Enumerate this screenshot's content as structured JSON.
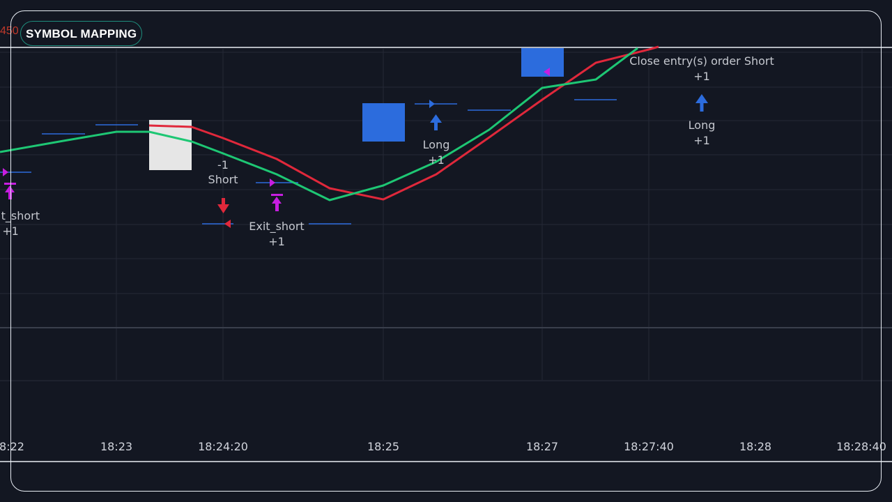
{
  "header": {
    "badge_label": "SYMBOL MAPPING",
    "price_fragment": "450"
  },
  "colors": {
    "background": "#131722",
    "grid": "#242936",
    "green_line": "#1ec774",
    "red_line": "#e0283b",
    "blue_marker": "#2c6cdd",
    "magenta_marker": "#c71ee0",
    "white_box": "#e6e6e6",
    "frame": "#e9eef5"
  },
  "chart_data": {
    "type": "line",
    "x_tick_labels": [
      "8:22",
      "18:23",
      "18:24:20",
      "18:25",
      "18:27",
      "18:27:40",
      "18:28",
      "18:28:40"
    ],
    "annotations": {
      "exit_short_left": {
        "label": "t_short",
        "qty": "+1"
      },
      "short_entry": {
        "qty": "-1",
        "label": "Short"
      },
      "exit_short": {
        "label": "Exit_short",
        "qty": "+1"
      },
      "long_entry": {
        "label": "Long",
        "qty": "+1"
      },
      "close_entry": {
        "label": "Close entry(s) order Short",
        "qty": "+1"
      },
      "long_right": {
        "label": "Long",
        "qty": "+1"
      }
    },
    "series": [
      {
        "color": "green"
      },
      {
        "color": "red"
      }
    ],
    "grid": true
  }
}
